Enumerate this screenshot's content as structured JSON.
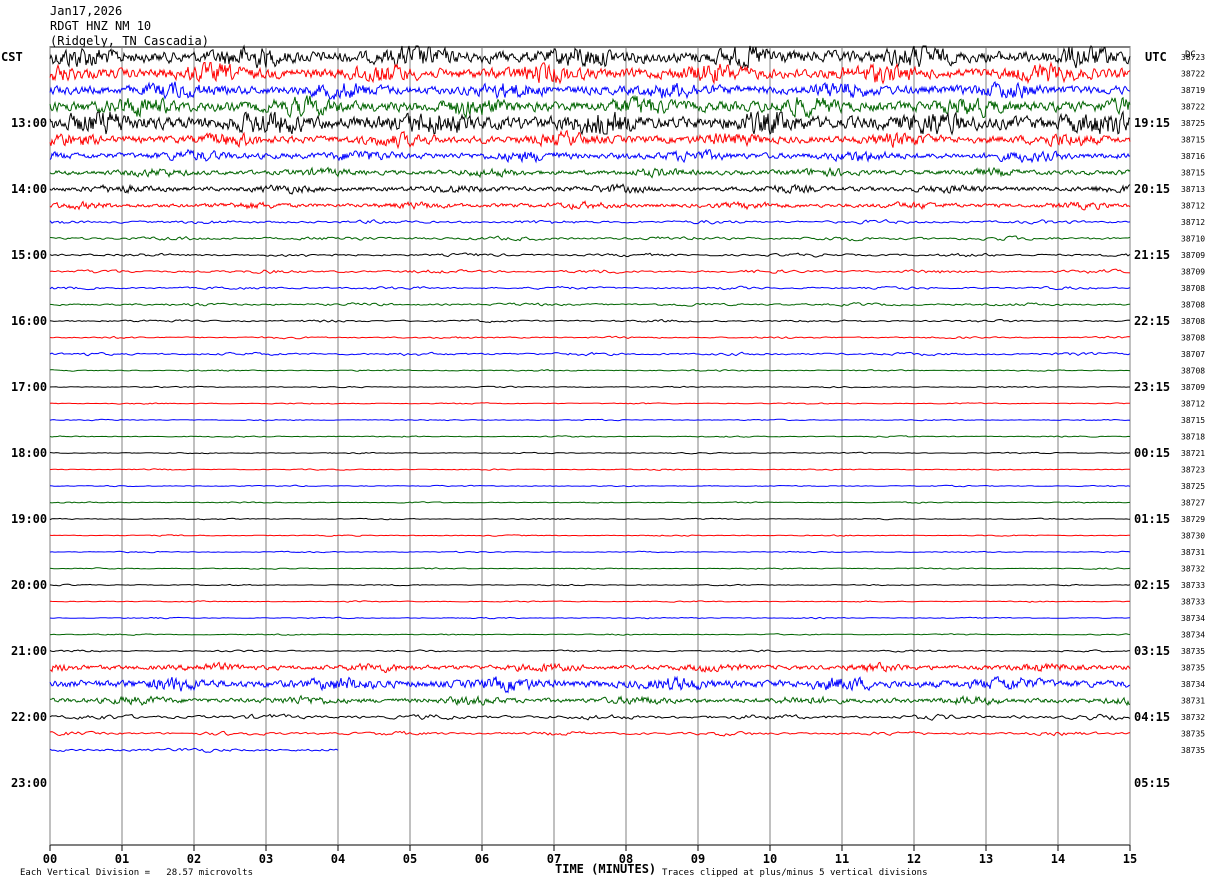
{
  "header": {
    "date": "Jan17,2026",
    "station": "RDGT HNZ NM 10",
    "location": "(Ridgely, TN Cascadia)"
  },
  "left_tz": "CST",
  "right_tz": "UTC",
  "dc_label": "DC",
  "colors": [
    "#000000",
    "#ff0000",
    "#0000ff",
    "#006400"
  ],
  "chart_data": {
    "type": "line",
    "title": "",
    "xlabel": "TIME (MINUTES)",
    "x_ticks": [
      "00",
      "01",
      "02",
      "03",
      "04",
      "05",
      "06",
      "07",
      "08",
      "09",
      "10",
      "11",
      "12",
      "13",
      "14",
      "15"
    ],
    "xlim": [
      0,
      15
    ],
    "left_hour_labels": [
      "13:00",
      "14:00",
      "15:00",
      "16:00",
      "17:00",
      "18:00",
      "19:00",
      "20:00",
      "21:00",
      "22:00",
      "23:00"
    ],
    "right_hour_labels": [
      "19:15",
      "20:15",
      "21:15",
      "22:15",
      "23:15",
      "00:15",
      "01:15",
      "02:15",
      "03:15",
      "04:15",
      "05:15"
    ],
    "dc_offsets": [
      "38723",
      "38722",
      "38719",
      "38722",
      "38725",
      "38715",
      "38716",
      "38715",
      "38713",
      "38712",
      "38712",
      "38710",
      "38709",
      "38709",
      "38708",
      "38708",
      "38708",
      "38708",
      "38707",
      "38708",
      "38709",
      "38712",
      "38715",
      "38718",
      "38721",
      "38723",
      "38725",
      "38727",
      "38729",
      "38730",
      "38731",
      "38732",
      "38733",
      "38733",
      "38734",
      "38734",
      "38735",
      "38735",
      "38734",
      "38731",
      "38732",
      "38735",
      "38735"
    ],
    "trace_amplitude": [
      8,
      7,
      6,
      7,
      9,
      5,
      4,
      3,
      3,
      2.5,
      1.5,
      1.6,
      1.3,
      1.4,
      1.1,
      1.2,
      1.0,
      0.8,
      1.2,
      0.6,
      0.5,
      0.5,
      0.5,
      0.5,
      0.5,
      0.5,
      0.5,
      0.5,
      0.5,
      0.5,
      0.5,
      0.5,
      0.5,
      0.5,
      0.5,
      0.5,
      0.8,
      3,
      5,
      3,
      2,
      1.5,
      1.6
    ],
    "last_trace_end_minute": 4.0,
    "traces_per_hour": 4,
    "total_traces": 43
  },
  "footer": {
    "division": "Each Vertical Division =   28.57 microvolts",
    "clipped": "Traces clipped at plus/minus 5 vertical divisions"
  }
}
